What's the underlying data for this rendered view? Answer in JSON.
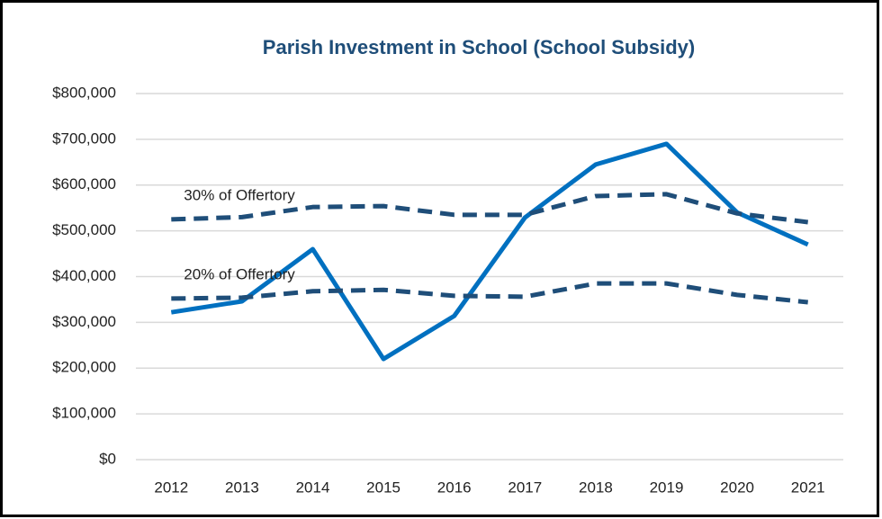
{
  "chart_data": {
    "type": "line",
    "title": "Parish Investment in School (School Subsidy)",
    "categories": [
      "2012",
      "2013",
      "2014",
      "2015",
      "2016",
      "2017",
      "2018",
      "2019",
      "2020",
      "2021"
    ],
    "series": [
      {
        "color": "#0070c0",
        "dashed": false,
        "values": [
          322000,
          346000,
          460000,
          220000,
          314000,
          529000,
          645000,
          690000,
          540000,
          470000
        ]
      },
      {
        "name": "30% of Offertory",
        "color": "#1f4e79",
        "dashed": true,
        "values": [
          525000,
          530000,
          552000,
          554000,
          535000,
          535000,
          576000,
          580000,
          538000,
          519000
        ]
      },
      {
        "name": "20% of Offertory",
        "color": "#1f4e79",
        "dashed": true,
        "values": [
          352000,
          354000,
          368000,
          371000,
          358000,
          356000,
          385000,
          385000,
          360000,
          344000
        ]
      }
    ],
    "ylim": [
      0,
      800000
    ],
    "yticks": [
      {
        "value": 0,
        "label": "$0"
      },
      {
        "value": 100000,
        "label": "$100,000"
      },
      {
        "value": 200000,
        "label": "$200,000"
      },
      {
        "value": 300000,
        "label": "$300,000"
      },
      {
        "value": 400000,
        "label": "$400,000"
      },
      {
        "value": 500000,
        "label": "$500,000"
      },
      {
        "value": 600000,
        "label": "$600,000"
      },
      {
        "value": 700000,
        "label": "$700,000"
      },
      {
        "value": 800000,
        "label": "$800,000"
      }
    ],
    "grid": true
  }
}
